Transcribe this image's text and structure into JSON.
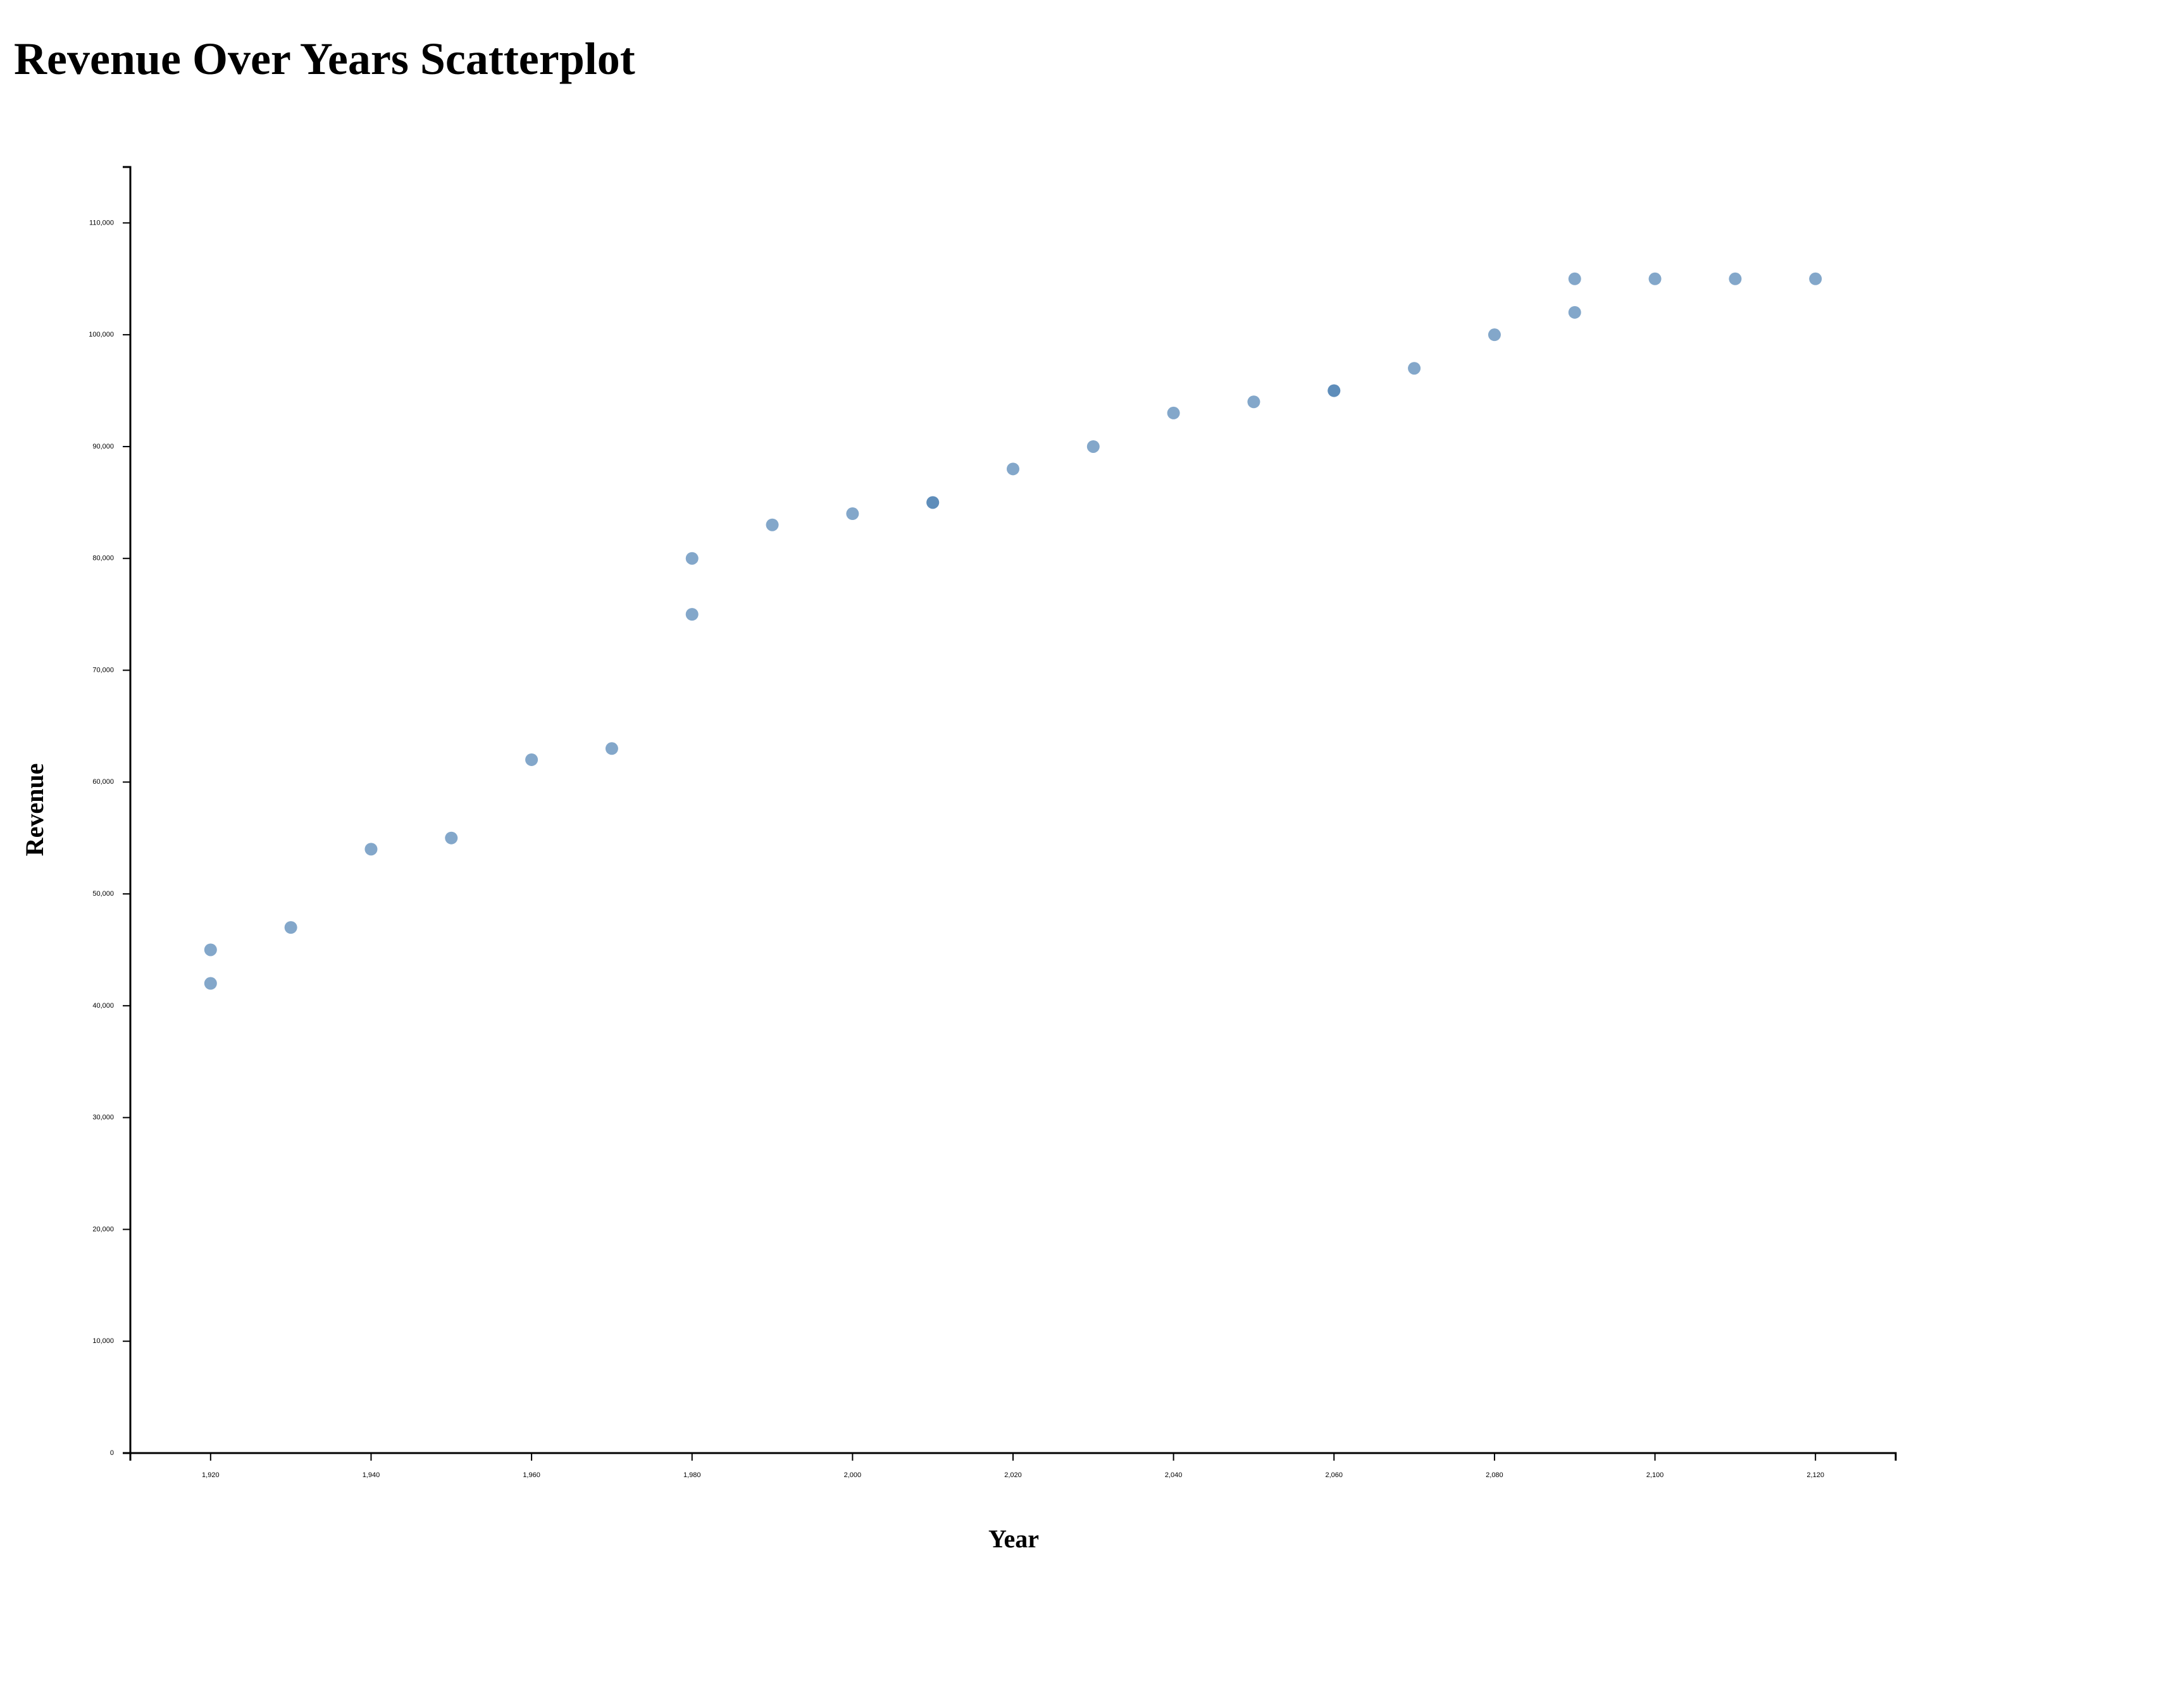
{
  "page_title": "Revenue Over Years Scatterplot",
  "chart_data": {
    "type": "scatter",
    "title": "Revenue Over Years Scatterplot",
    "xlabel": "Year",
    "ylabel": "Revenue",
    "xlim": [
      1910,
      2130
    ],
    "ylim": [
      0,
      115000
    ],
    "x_ticks": [
      1920,
      1940,
      1960,
      1980,
      2000,
      2020,
      2040,
      2060,
      2080,
      2100,
      2120
    ],
    "x_tick_labels": [
      "1,920",
      "1,940",
      "1,960",
      "1,980",
      "2,000",
      "2,020",
      "2,040",
      "2,060",
      "2,080",
      "2,100",
      "2,120"
    ],
    "y_ticks": [
      0,
      10000,
      20000,
      30000,
      40000,
      50000,
      60000,
      70000,
      80000,
      90000,
      100000,
      110000
    ],
    "y_tick_labels": [
      "0",
      "10,000",
      "20,000",
      "30,000",
      "40,000",
      "50,000",
      "60,000",
      "70,000",
      "80,000",
      "90,000",
      "100,000",
      "110,000"
    ],
    "grid": false,
    "point_color": "#4f81b4",
    "axis_color": "#000000",
    "points": [
      {
        "x": 1920,
        "y": 42000
      },
      {
        "x": 1920,
        "y": 45000
      },
      {
        "x": 1930,
        "y": 47000
      },
      {
        "x": 1940,
        "y": 54000
      },
      {
        "x": 1950,
        "y": 55000
      },
      {
        "x": 1960,
        "y": 62000
      },
      {
        "x": 1970,
        "y": 63000
      },
      {
        "x": 1980,
        "y": 75000
      },
      {
        "x": 1980,
        "y": 80000
      },
      {
        "x": 1990,
        "y": 83000
      },
      {
        "x": 2000,
        "y": 84000
      },
      {
        "x": 2010,
        "y": 85000
      },
      {
        "x": 2010,
        "y": 85000
      },
      {
        "x": 2020,
        "y": 88000
      },
      {
        "x": 2030,
        "y": 90000
      },
      {
        "x": 2040,
        "y": 93000
      },
      {
        "x": 2050,
        "y": 94000
      },
      {
        "x": 2060,
        "y": 95000
      },
      {
        "x": 2060,
        "y": 95000
      },
      {
        "x": 2070,
        "y": 97000
      },
      {
        "x": 2080,
        "y": 100000
      },
      {
        "x": 2090,
        "y": 102000
      },
      {
        "x": 2090,
        "y": 105000
      },
      {
        "x": 2100,
        "y": 105000
      },
      {
        "x": 2110,
        "y": 105000
      },
      {
        "x": 2120,
        "y": 105000
      }
    ]
  }
}
